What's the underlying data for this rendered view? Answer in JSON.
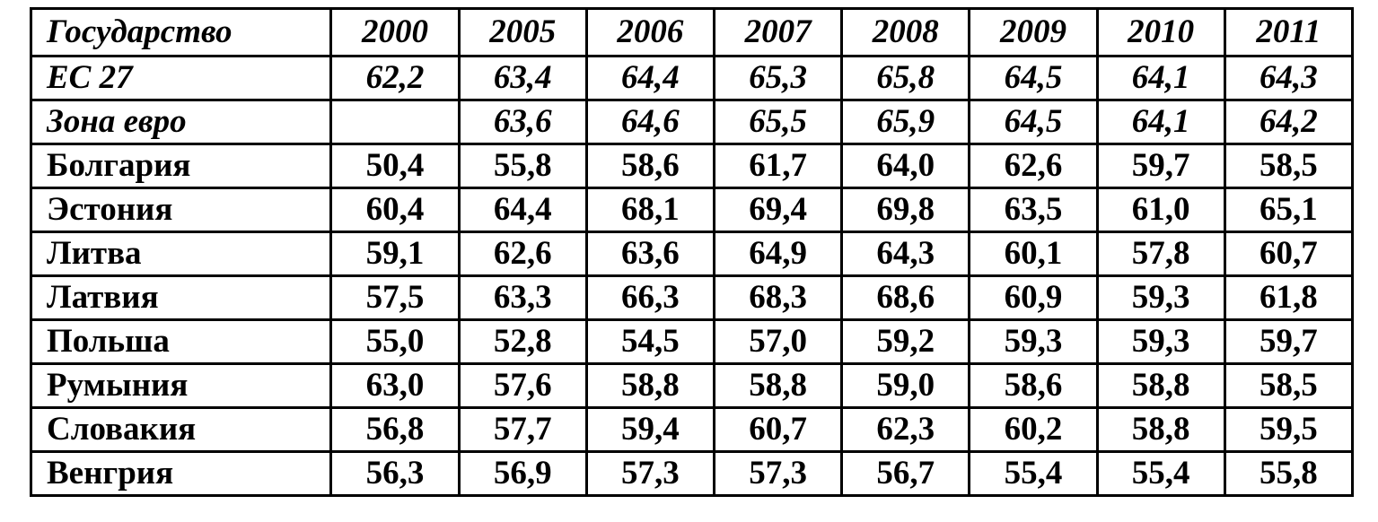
{
  "table": {
    "columns": [
      "Государство",
      "2000",
      "2005",
      "2006",
      "2007",
      "2008",
      "2009",
      "2010",
      "2011"
    ],
    "rows": [
      {
        "name": "ЕС 27",
        "group": "aggregate",
        "values": [
          "62,2",
          "63,4",
          "64,4",
          "65,3",
          "65,8",
          "64,5",
          "64,1",
          "64,3"
        ]
      },
      {
        "name": "Зона евро",
        "group": "aggregate",
        "values": [
          "",
          "63,6",
          "64,6",
          "65,5",
          "65,9",
          "64,5",
          "64,1",
          "64,2"
        ]
      },
      {
        "name": "Болгария",
        "group": "country",
        "values": [
          "50,4",
          "55,8",
          "58,6",
          "61,7",
          "64,0",
          "62,6",
          "59,7",
          "58,5"
        ]
      },
      {
        "name": "Эстония",
        "group": "country",
        "values": [
          "60,4",
          "64,4",
          "68,1",
          "69,4",
          "69,8",
          "63,5",
          "61,0",
          "65,1"
        ]
      },
      {
        "name": "Литва",
        "group": "country",
        "values": [
          "59,1",
          "62,6",
          "63,6",
          "64,9",
          "64,3",
          "60,1",
          "57,8",
          "60,7"
        ]
      },
      {
        "name": "Латвия",
        "group": "country",
        "values": [
          "57,5",
          "63,3",
          "66,3",
          "68,3",
          "68,6",
          "60,9",
          "59,3",
          "61,8"
        ]
      },
      {
        "name": "Польша",
        "group": "country",
        "values": [
          "55,0",
          "52,8",
          "54,5",
          "57,0",
          "59,2",
          "59,3",
          "59,3",
          "59,7"
        ]
      },
      {
        "name": "Румыния",
        "group": "country",
        "values": [
          "63,0",
          "57,6",
          "58,8",
          "58,8",
          "59,0",
          "58,6",
          "58,8",
          "58,5"
        ]
      },
      {
        "name": "Словакия",
        "group": "country",
        "values": [
          "56,8",
          "57,7",
          "59,4",
          "60,7",
          "62,3",
          "60,2",
          "58,8",
          "59,5"
        ]
      },
      {
        "name": "Венгрия",
        "group": "country",
        "values": [
          "56,3",
          "56,9",
          "57,3",
          "57,3",
          "56,7",
          "55,4",
          "55,4",
          "55,8"
        ]
      }
    ]
  },
  "chart_data": {
    "type": "table",
    "title": "",
    "columns": [
      "Государство",
      "2000",
      "2005",
      "2006",
      "2007",
      "2008",
      "2009",
      "2010",
      "2011"
    ],
    "series": [
      {
        "name": "ЕС 27",
        "values": [
          62.2,
          63.4,
          64.4,
          65.3,
          65.8,
          64.5,
          64.1,
          64.3
        ]
      },
      {
        "name": "Зона евро",
        "values": [
          null,
          63.6,
          64.6,
          65.5,
          65.9,
          64.5,
          64.1,
          64.2
        ]
      },
      {
        "name": "Болгария",
        "values": [
          50.4,
          55.8,
          58.6,
          61.7,
          64.0,
          62.6,
          59.7,
          58.5
        ]
      },
      {
        "name": "Эстония",
        "values": [
          60.4,
          64.4,
          68.1,
          69.4,
          69.8,
          63.5,
          61.0,
          65.1
        ]
      },
      {
        "name": "Литва",
        "values": [
          59.1,
          62.6,
          63.6,
          64.9,
          64.3,
          60.1,
          57.8,
          60.7
        ]
      },
      {
        "name": "Латвия",
        "values": [
          57.5,
          63.3,
          66.3,
          68.3,
          68.6,
          60.9,
          59.3,
          61.8
        ]
      },
      {
        "name": "Польша",
        "values": [
          55.0,
          52.8,
          54.5,
          57.0,
          59.2,
          59.3,
          59.3,
          59.7
        ]
      },
      {
        "name": "Румыния",
        "values": [
          63.0,
          57.6,
          58.8,
          58.8,
          59.0,
          58.6,
          58.8,
          58.5
        ]
      },
      {
        "name": "Словакия",
        "values": [
          56.8,
          57.7,
          59.4,
          60.7,
          62.3,
          60.2,
          58.8,
          59.5
        ]
      },
      {
        "name": "Венгрия",
        "values": [
          56.3,
          56.9,
          57.3,
          57.3,
          56.7,
          55.4,
          55.4,
          55.8
        ]
      }
    ]
  }
}
